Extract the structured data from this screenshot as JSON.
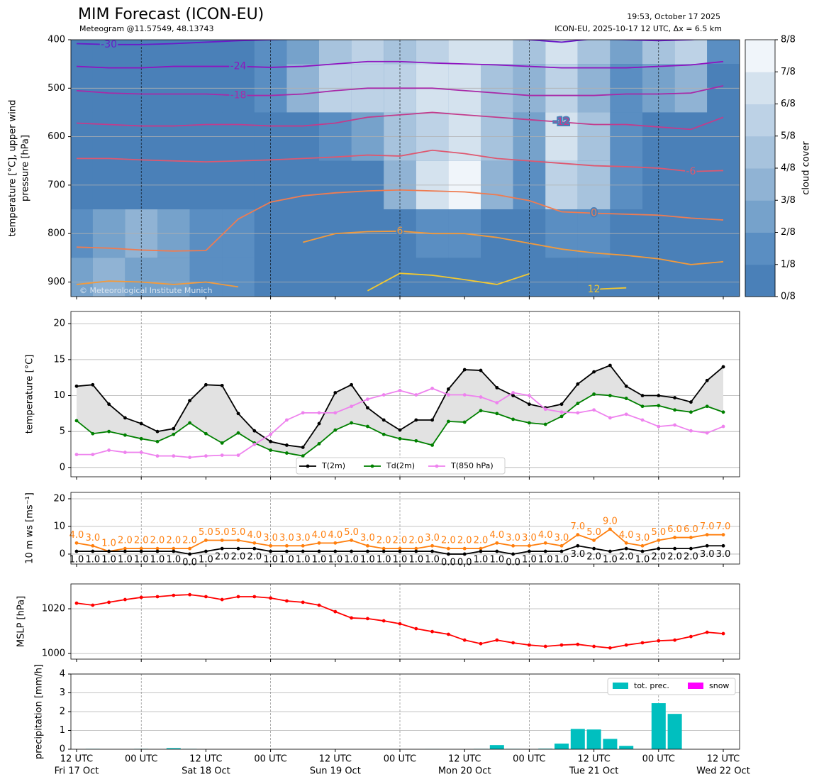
{
  "header": {
    "title": "MIM Forecast (ICON-EU)",
    "subtitle": "Meteogram @11.57549, 48.13743",
    "timestamp": "19:53, October 17 2025",
    "run": "ICON-EU, 2025-10-17 12 UTC, Δx = 6.5 km",
    "copyright": "© Meteorological Institute Munich"
  },
  "chart_data": [
    {
      "type": "contour",
      "ylabel": [
        "temperature [°C], upper wind",
        "pressure [hPa]"
      ],
      "ylim": [
        930,
        400
      ],
      "yticks": [
        400,
        500,
        600,
        700,
        800,
        900
      ],
      "grid": true,
      "cloud_cover": {
        "values": [
          [
            0,
            0,
            0,
            0,
            0,
            0,
            1,
            2,
            4,
            5,
            4,
            5,
            6,
            6,
            4,
            6,
            4,
            2,
            4,
            5,
            1
          ],
          [
            0,
            0,
            0,
            0,
            0,
            0,
            1,
            3,
            5,
            5,
            5,
            6,
            6,
            4,
            3,
            5,
            3,
            1,
            2,
            3,
            0
          ],
          [
            0,
            0,
            0,
            0,
            0,
            0,
            0,
            0,
            1,
            2,
            4,
            5,
            6,
            4,
            2,
            6,
            4,
            1,
            0,
            0,
            0
          ],
          [
            0,
            0,
            0,
            0,
            0,
            0,
            0,
            0,
            0,
            0,
            3,
            6,
            7,
            3,
            1,
            5,
            4,
            1,
            0,
            0,
            0
          ],
          [
            1,
            2,
            3,
            2,
            1,
            1,
            0,
            0,
            0,
            0,
            0,
            1,
            1,
            0,
            0,
            1,
            1,
            0,
            0,
            0,
            0
          ],
          [
            2,
            3,
            2,
            2,
            1,
            1,
            0,
            0,
            0,
            0,
            0,
            0,
            0,
            0,
            0,
            0,
            0,
            0,
            0,
            0,
            0
          ]
        ]
      },
      "contours": [
        {
          "level": -30,
          "color": "#6a1bc9",
          "values": [
            408,
            410,
            410,
            408,
            405,
            402,
            400,
            398,
            395,
            392,
            395,
            392,
            395,
            396,
            400,
            405,
            398,
            400,
            402,
            400,
            395
          ]
        },
        {
          "level": -24,
          "color": "#8e14c0",
          "values": [
            455,
            458,
            458,
            455,
            455,
            455,
            457,
            455,
            450,
            445,
            445,
            448,
            450,
            452,
            455,
            458,
            458,
            458,
            455,
            452,
            445
          ]
        },
        {
          "level": -18,
          "color": "#a82aa8",
          "values": [
            505,
            510,
            512,
            512,
            512,
            515,
            515,
            512,
            505,
            500,
            500,
            500,
            505,
            510,
            515,
            515,
            515,
            512,
            512,
            510,
            495
          ]
        },
        {
          "level": -12,
          "color": "#c23c8c",
          "values": [
            572,
            575,
            578,
            578,
            575,
            575,
            578,
            578,
            572,
            560,
            555,
            550,
            555,
            560,
            565,
            570,
            575,
            575,
            580,
            585,
            560
          ]
        },
        {
          "level": -6,
          "color": "#de5870",
          "values": [
            645,
            645,
            648,
            650,
            652,
            650,
            648,
            645,
            642,
            638,
            640,
            628,
            635,
            645,
            650,
            655,
            660,
            662,
            665,
            672,
            670
          ]
        },
        {
          "level": 0,
          "color": "#ee7c52",
          "values": [
            828,
            830,
            834,
            836,
            835,
            770,
            735,
            722,
            716,
            712,
            710,
            712,
            714,
            720,
            732,
            755,
            758,
            760,
            762,
            768,
            772
          ]
        },
        {
          "level": 6,
          "color": "#f29a3c",
          "values": [
            905,
            898,
            900,
            905,
            900,
            910,
            null,
            818,
            800,
            796,
            795,
            800,
            800,
            808,
            820,
            832,
            840,
            845,
            852,
            864,
            858
          ]
        },
        {
          "level": 12,
          "color": "#f2c830",
          "values": [
            null,
            null,
            null,
            null,
            null,
            null,
            null,
            null,
            null,
            918,
            882,
            886,
            895,
            905,
            883,
            null,
            915,
            912,
            null,
            null,
            null
          ]
        }
      ],
      "colorbar": {
        "label": "cloud cover",
        "colors": [
          "#4a80b8",
          "#5a8ec2",
          "#76a2cb",
          "#90b3d4",
          "#a7c3dd",
          "#bdd2e6",
          "#d4e2ee",
          "#f0f5fa"
        ],
        "ticks": [
          {
            "value": 0,
            "label": "0/8"
          },
          {
            "value": 1,
            "label": "1/8"
          },
          {
            "value": 2,
            "label": "2/8"
          },
          {
            "value": 3,
            "label": "3/8"
          },
          {
            "value": 4,
            "label": "4/8"
          },
          {
            "value": 5,
            "label": "5/8"
          },
          {
            "value": 6,
            "label": "6/8"
          },
          {
            "value": 7,
            "label": "7/8"
          },
          {
            "value": 8,
            "label": "8/8"
          }
        ]
      }
    },
    {
      "type": "line",
      "ylabel": "temperature [°C]",
      "ylim": [
        -1.3,
        21.7
      ],
      "yticks": [
        0,
        5,
        10,
        15,
        20
      ],
      "grid": true,
      "fill_color": "#e2e2e2",
      "legend": "lower center",
      "series": [
        {
          "name": "T(2m)",
          "color": "#000000",
          "values": [
            11.3,
            11.5,
            8.8,
            6.9,
            6.1,
            5.0,
            5.4,
            9.3,
            11.5,
            11.4,
            7.5,
            5.1,
            3.6,
            3.1,
            2.8,
            6.1,
            10.4,
            11.5,
            8.3,
            6.6,
            5.2,
            6.6,
            6.6,
            10.9,
            13.6,
            13.5,
            11.1,
            10.0,
            8.8,
            8.3,
            8.8,
            11.6,
            13.3,
            14.2,
            11.3,
            10.0,
            10.0,
            9.7,
            9.1,
            12.1,
            14.0
          ]
        },
        {
          "name": "Td(2m)",
          "color": "#008000",
          "values": [
            6.5,
            4.7,
            5.0,
            4.5,
            4.0,
            3.6,
            4.6,
            6.2,
            4.7,
            3.4,
            4.8,
            3.4,
            2.4,
            2.0,
            1.6,
            3.3,
            5.2,
            6.2,
            5.7,
            4.6,
            4.0,
            3.7,
            3.1,
            6.4,
            6.3,
            7.9,
            7.5,
            6.7,
            6.2,
            6.0,
            7.1,
            8.9,
            10.2,
            10.0,
            9.6,
            8.5,
            8.6,
            8.0,
            7.7,
            8.5,
            7.7
          ]
        },
        {
          "name": "T(850 hPa)",
          "color": "#ee82ee",
          "values": [
            1.8,
            1.8,
            2.4,
            2.1,
            2.1,
            1.6,
            1.6,
            1.4,
            1.6,
            1.7,
            1.7,
            3.2,
            4.6,
            6.6,
            7.6,
            7.6,
            7.6,
            8.5,
            9.5,
            10.1,
            10.7,
            10.1,
            11.0,
            10.1,
            10.1,
            9.8,
            9.0,
            10.4,
            10.0,
            8.1,
            7.7,
            7.6,
            8.0,
            6.9,
            7.4,
            6.6,
            5.7,
            5.9,
            5.1,
            4.8,
            5.7
          ]
        }
      ]
    },
    {
      "type": "line",
      "ylabel": "10 m ws [ms⁻¹]",
      "ylim": [
        -3.6,
        22.3
      ],
      "yticks": [
        0,
        10,
        20
      ],
      "grid": true,
      "series": [
        {
          "color": "#ff7f0e",
          "label_position": "above",
          "values": [
            4,
            3,
            1,
            2,
            2,
            2,
            2,
            2,
            5,
            5,
            5,
            4,
            3,
            3,
            3,
            4,
            4,
            5,
            3,
            2,
            2,
            2,
            3,
            2,
            2,
            2,
            4,
            3,
            3,
            4,
            3,
            7,
            5,
            9,
            4,
            3,
            5,
            6,
            6,
            7,
            7
          ],
          "value_labels": [
            "4.0",
            "3.0",
            "1.0",
            "2.0",
            "2.0",
            "2.0",
            "2.0",
            "2.0",
            "5.0",
            "5.0",
            "5.0",
            "4.0",
            "3.0",
            "3.0",
            "3.0",
            "4.0",
            "4.0",
            "5.0",
            "3.0",
            "2.0",
            "2.0",
            "2.0",
            "3.0",
            "2.0",
            "2.0",
            "2.0",
            "4.0",
            "3.0",
            "3.0",
            "4.0",
            "3.0",
            "7.0",
            "5.0",
            "9.0",
            "4.0",
            "3.0",
            "5.0",
            "6.0",
            "6.0",
            "7.0",
            "7.0"
          ]
        },
        {
          "color": "#000000",
          "label_position": "below",
          "values": [
            1,
            1,
            1,
            1,
            1,
            1,
            1,
            0,
            1,
            2,
            2,
            2,
            1,
            1,
            1,
            1,
            1,
            1,
            1,
            1,
            1,
            1,
            1,
            0,
            0,
            1,
            1,
            0,
            1,
            1,
            1,
            3,
            2,
            1,
            2,
            1,
            2,
            2,
            2,
            3,
            3
          ],
          "value_labels": [
            "1.0",
            "1.0",
            "1.0",
            "1.0",
            "1.0",
            "1.0",
            "1.0",
            "0.0",
            "1.0",
            "2.0",
            "2.0",
            "2.0",
            "1.0",
            "1.0",
            "1.0",
            "1.0",
            "1.0",
            "1.0",
            "1.0",
            "1.0",
            "1.0",
            "1.0",
            "1.0",
            "0.0",
            "0.0",
            "1.0",
            "1.0",
            "0.0",
            "1.0",
            "1.0",
            "1.0",
            "3.0",
            "2.0",
            "1.0",
            "2.0",
            "1.0",
            "2.0",
            "2.0",
            "2.0",
            "3.0",
            "3.0"
          ]
        }
      ]
    },
    {
      "type": "line",
      "ylabel": "MSLP [hPa]",
      "ylim": [
        997.5,
        1031.1
      ],
      "yticks": [
        1000,
        1020
      ],
      "grid": true,
      "series": [
        {
          "color": "#ff0000",
          "values": [
            1022.5,
            1021.6,
            1022.9,
            1024.1,
            1025.1,
            1025.4,
            1026.0,
            1026.3,
            1025.4,
            1024.1,
            1025.4,
            1025.4,
            1024.8,
            1023.5,
            1022.9,
            1021.6,
            1018.7,
            1015.9,
            1015.6,
            1014.6,
            1013.3,
            1011.1,
            1009.8,
            1008.6,
            1006.0,
            1004.4,
            1006.0,
            1004.8,
            1003.8,
            1003.2,
            1003.8,
            1004.1,
            1003.2,
            1002.5,
            1003.8,
            1004.8,
            1005.7,
            1006.0,
            1007.6,
            1009.5,
            1008.9
          ]
        }
      ]
    },
    {
      "type": "bar",
      "ylabel": "precipitation [mm/h]",
      "ylim": [
        0,
        4
      ],
      "yticks": [
        0,
        1,
        2,
        3,
        4
      ],
      "grid": true,
      "legend": "upper right",
      "categories": [
        "12 UTC",
        null,
        null,
        null,
        "00 UTC",
        null,
        null,
        null,
        "12 UTC",
        null,
        null,
        null,
        "00 UTC",
        null,
        null,
        null,
        "12 UTC",
        null,
        null,
        null,
        "00 UTC",
        null,
        null,
        null,
        "12 UTC",
        null,
        null,
        null,
        "00 UTC",
        null,
        null,
        null,
        "12 UTC",
        null,
        null,
        null,
        "00 UTC",
        null,
        null,
        null,
        "12 UTC"
      ],
      "day_labels": [
        "Fri 17 Oct",
        "Sat 18 Oct",
        "Sun 19 Oct",
        "Mon 20 Oct",
        "Tue 21 Oct",
        "Wed 22 Oct"
      ],
      "series": [
        {
          "name": "tot. prec.",
          "color": "#00bfbf",
          "values": [
            0,
            0.02,
            0,
            0,
            0.02,
            0,
            0.06,
            0.02,
            0,
            0,
            0,
            0,
            0,
            0,
            0,
            0,
            0,
            0,
            0,
            0,
            0,
            0,
            0.01,
            0,
            0,
            0.02,
            0.22,
            0.02,
            0,
            0.03,
            0.3,
            1.08,
            1.05,
            0.55,
            0.18,
            0,
            2.45,
            1.88,
            0,
            0,
            0
          ]
        },
        {
          "name": "snow",
          "color": "#ff00ff",
          "values": [
            0,
            0,
            0,
            0,
            0,
            0,
            0,
            0,
            0,
            0,
            0,
            0,
            0,
            0,
            0,
            0,
            0,
            0,
            0,
            0,
            0,
            0,
            0,
            0,
            0,
            0,
            0,
            0,
            0,
            0,
            0,
            0,
            0,
            0,
            0,
            0,
            0,
            0,
            0,
            0,
            0
          ]
        }
      ]
    }
  ]
}
